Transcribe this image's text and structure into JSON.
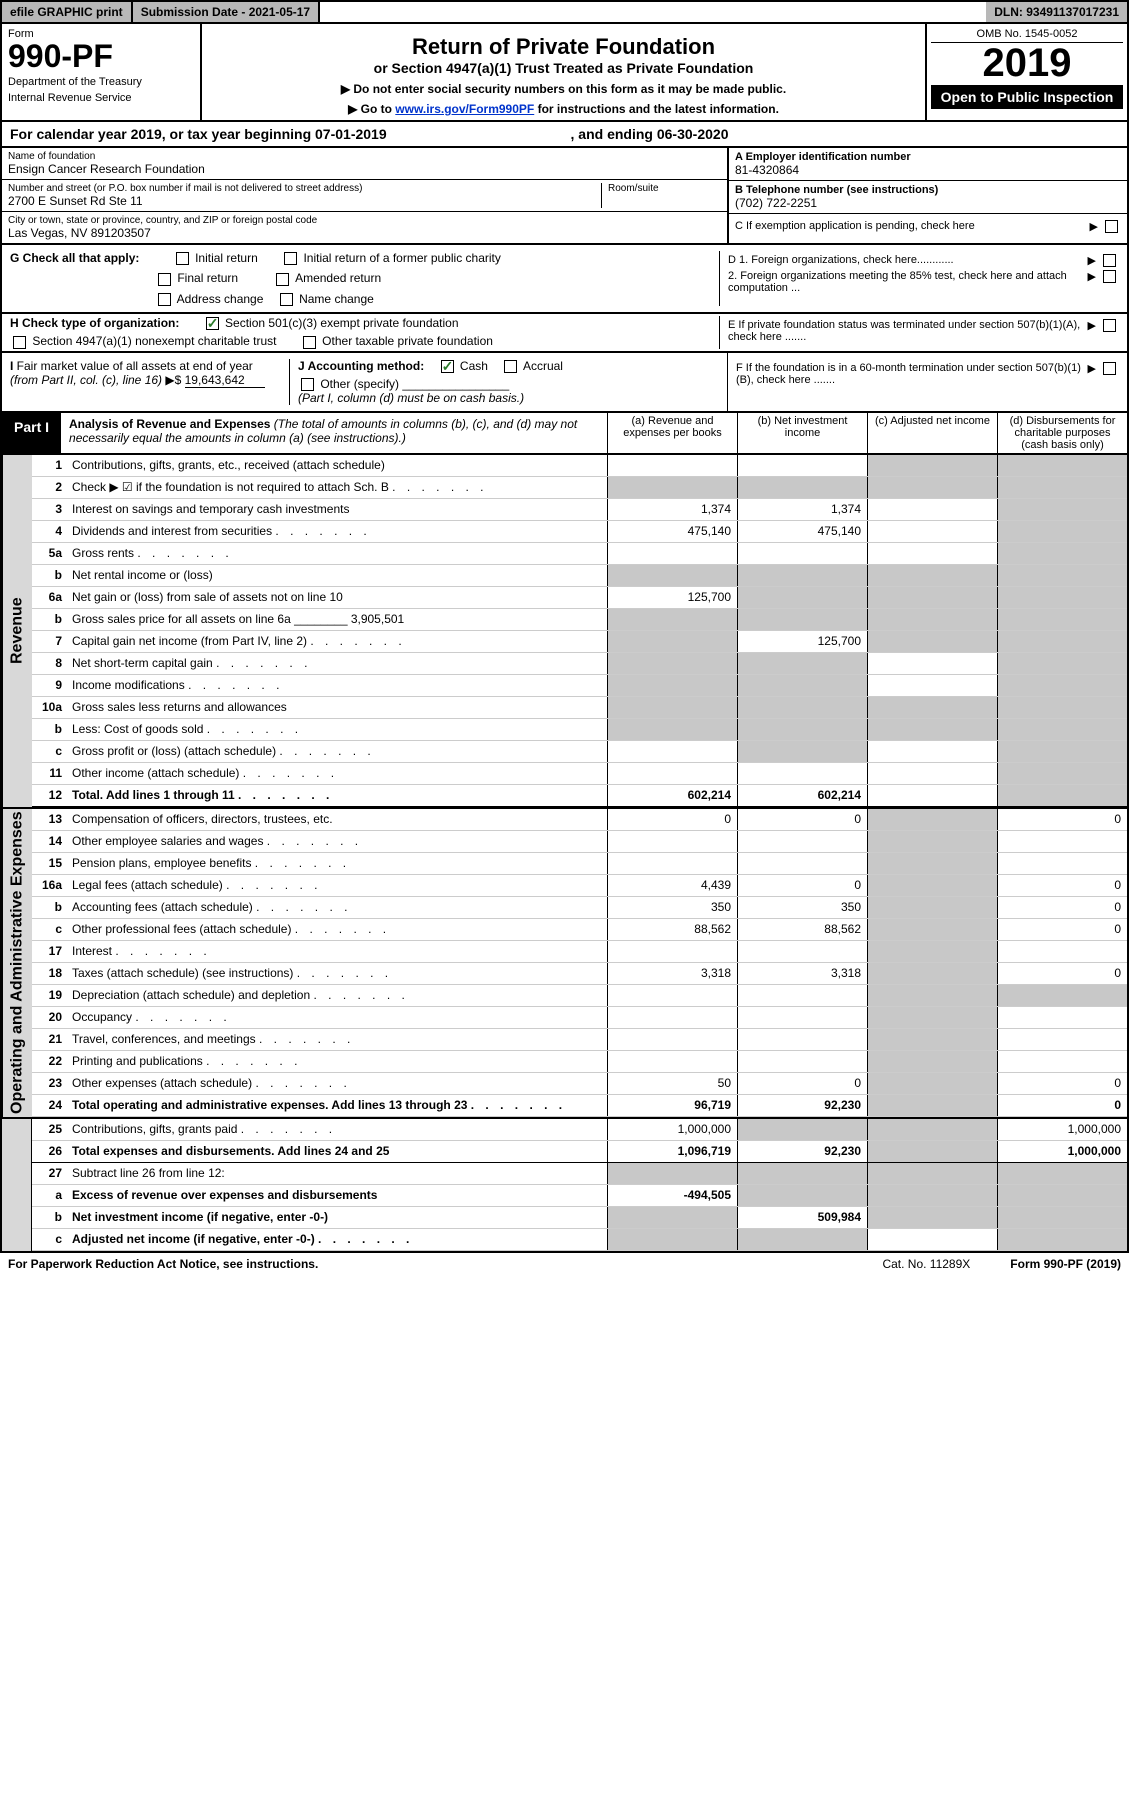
{
  "topbar": {
    "efile": "efile GRAPHIC print",
    "subdate": "Submission Date - 2021-05-17",
    "dln": "DLN: 93491137017231"
  },
  "header": {
    "form_label": "Form",
    "form_no": "990-PF",
    "dept1": "Department of the Treasury",
    "dept2": "Internal Revenue Service",
    "title1": "Return of Private Foundation",
    "title2": "or Section 4947(a)(1) Trust Treated as Private Foundation",
    "instr1": "▶ Do not enter social security numbers on this form as it may be made public.",
    "instr2": "▶ Go to www.irs.gov/Form990PF for instructions and the latest information.",
    "omb": "OMB No. 1545-0052",
    "year": "2019",
    "open": "Open to Public Inspection"
  },
  "calyear": {
    "text": "For calendar year 2019, or tax year beginning 07-01-2019",
    "ending": ", and ending 06-30-2020"
  },
  "info": {
    "name_label": "Name of foundation",
    "name": "Ensign Cancer Research Foundation",
    "addr_label": "Number and street (or P.O. box number if mail is not delivered to street address)",
    "addr": "2700 E Sunset Rd Ste 11",
    "room_label": "Room/suite",
    "city_label": "City or town, state or province, country, and ZIP or foreign postal code",
    "city": "Las Vegas, NV  891203507",
    "ein_label": "A Employer identification number",
    "ein": "81-4320864",
    "tel_label": "B Telephone number (see instructions)",
    "tel": "(702) 722-2251",
    "c_label": "C If exemption application is pending, check here"
  },
  "g": {
    "label": "G Check all that apply:",
    "opts": [
      "Initial return",
      "Initial return of a former public charity",
      "Final return",
      "Amended return",
      "Address change",
      "Name change"
    ]
  },
  "d": {
    "d1": "D 1. Foreign organizations, check here............",
    "d2": "2. Foreign organizations meeting the 85% test, check here and attach computation ...",
    "e": "E  If private foundation status was terminated under section 507(b)(1)(A), check here .......",
    "f": "F  If the foundation is in a 60-month termination under section 507(b)(1)(B), check here ......."
  },
  "h": {
    "label": "H Check type of organization:",
    "opt1": "Section 501(c)(3) exempt private foundation",
    "opt2": "Section 4947(a)(1) nonexempt charitable trust",
    "opt3": "Other taxable private foundation"
  },
  "i": {
    "label": "I Fair market value of all assets at end of year (from Part II, col. (c), line 16)",
    "val": "19,643,642"
  },
  "j": {
    "label": "J Accounting method:",
    "cash": "Cash",
    "accrual": "Accrual",
    "other": "Other (specify)",
    "note": "(Part I, column (d) must be on cash basis.)"
  },
  "part1": {
    "label": "Part I",
    "title": "Analysis of Revenue and Expenses",
    "subtitle": "(The total of amounts in columns (b), (c), and (d) may not necessarily equal the amounts in column (a) (see instructions).)",
    "col_a": "(a) Revenue and expenses per books",
    "col_b": "(b) Net investment income",
    "col_c": "(c) Adjusted net income",
    "col_d": "(d) Disbursements for charitable purposes (cash basis only)"
  },
  "sections": {
    "revenue": "Revenue",
    "expenses": "Operating and Administrative Expenses"
  },
  "lines": [
    {
      "no": "1",
      "desc": "Contributions, gifts, grants, etc., received (attach schedule)",
      "a": "",
      "b": "",
      "c": "shade",
      "d": "shade"
    },
    {
      "no": "2",
      "desc": "Check ▶ ☑ if the foundation is not required to attach Sch. B",
      "dots": true,
      "a": "shade",
      "b": "shade",
      "c": "shade",
      "d": "shade"
    },
    {
      "no": "3",
      "desc": "Interest on savings and temporary cash investments",
      "a": "1,374",
      "b": "1,374",
      "c": "",
      "d": "shade"
    },
    {
      "no": "4",
      "desc": "Dividends and interest from securities",
      "dots": true,
      "a": "475,140",
      "b": "475,140",
      "c": "",
      "d": "shade"
    },
    {
      "no": "5a",
      "desc": "Gross rents",
      "dots": true,
      "a": "",
      "b": "",
      "c": "",
      "d": "shade"
    },
    {
      "no": "b",
      "desc": "Net rental income or (loss)",
      "a": "shade",
      "b": "shade",
      "c": "shade",
      "d": "shade"
    },
    {
      "no": "6a",
      "desc": "Net gain or (loss) from sale of assets not on line 10",
      "a": "125,700",
      "b": "shade",
      "c": "shade",
      "d": "shade"
    },
    {
      "no": "b",
      "desc": "Gross sales price for all assets on line 6a ________ 3,905,501",
      "a": "shade",
      "b": "shade",
      "c": "shade",
      "d": "shade"
    },
    {
      "no": "7",
      "desc": "Capital gain net income (from Part IV, line 2)",
      "dots": true,
      "a": "shade",
      "b": "125,700",
      "c": "shade",
      "d": "shade"
    },
    {
      "no": "8",
      "desc": "Net short-term capital gain",
      "dots": true,
      "a": "shade",
      "b": "shade",
      "c": "",
      "d": "shade"
    },
    {
      "no": "9",
      "desc": "Income modifications",
      "dots": true,
      "a": "shade",
      "b": "shade",
      "c": "",
      "d": "shade"
    },
    {
      "no": "10a",
      "desc": "Gross sales less returns and allowances",
      "a": "shade",
      "b": "shade",
      "c": "shade",
      "d": "shade"
    },
    {
      "no": "b",
      "desc": "Less: Cost of goods sold",
      "dots": true,
      "a": "shade",
      "b": "shade",
      "c": "shade",
      "d": "shade"
    },
    {
      "no": "c",
      "desc": "Gross profit or (loss) (attach schedule)",
      "dots": true,
      "a": "",
      "b": "shade",
      "c": "",
      "d": "shade"
    },
    {
      "no": "11",
      "desc": "Other income (attach schedule)",
      "dots": true,
      "a": "",
      "b": "",
      "c": "",
      "d": "shade"
    },
    {
      "no": "12",
      "desc": "Total. Add lines 1 through 11",
      "dots": true,
      "bold": true,
      "sep": true,
      "a": "602,214",
      "b": "602,214",
      "c": "",
      "d": "shade"
    },
    {
      "no": "13",
      "desc": "Compensation of officers, directors, trustees, etc.",
      "a": "0",
      "b": "0",
      "c": "shade",
      "d": "0"
    },
    {
      "no": "14",
      "desc": "Other employee salaries and wages",
      "dots": true,
      "a": "",
      "b": "",
      "c": "shade",
      "d": ""
    },
    {
      "no": "15",
      "desc": "Pension plans, employee benefits",
      "dots": true,
      "a": "",
      "b": "",
      "c": "shade",
      "d": ""
    },
    {
      "no": "16a",
      "desc": "Legal fees (attach schedule)",
      "dots": true,
      "a": "4,439",
      "b": "0",
      "c": "shade",
      "d": "0"
    },
    {
      "no": "b",
      "desc": "Accounting fees (attach schedule)",
      "dots": true,
      "a": "350",
      "b": "350",
      "c": "shade",
      "d": "0"
    },
    {
      "no": "c",
      "desc": "Other professional fees (attach schedule)",
      "dots": true,
      "a": "88,562",
      "b": "88,562",
      "c": "shade",
      "d": "0"
    },
    {
      "no": "17",
      "desc": "Interest",
      "dots": true,
      "a": "",
      "b": "",
      "c": "shade",
      "d": ""
    },
    {
      "no": "18",
      "desc": "Taxes (attach schedule) (see instructions)",
      "dots": true,
      "a": "3,318",
      "b": "3,318",
      "c": "shade",
      "d": "0"
    },
    {
      "no": "19",
      "desc": "Depreciation (attach schedule) and depletion",
      "dots": true,
      "a": "",
      "b": "",
      "c": "shade",
      "d": "shade"
    },
    {
      "no": "20",
      "desc": "Occupancy",
      "dots": true,
      "a": "",
      "b": "",
      "c": "shade",
      "d": ""
    },
    {
      "no": "21",
      "desc": "Travel, conferences, and meetings",
      "dots": true,
      "a": "",
      "b": "",
      "c": "shade",
      "d": ""
    },
    {
      "no": "22",
      "desc": "Printing and publications",
      "dots": true,
      "a": "",
      "b": "",
      "c": "shade",
      "d": ""
    },
    {
      "no": "23",
      "desc": "Other expenses (attach schedule)",
      "dots": true,
      "a": "50",
      "b": "0",
      "c": "shade",
      "d": "0"
    },
    {
      "no": "24",
      "desc": "Total operating and administrative expenses. Add lines 13 through 23",
      "dots": true,
      "bold": true,
      "a": "96,719",
      "b": "92,230",
      "c": "shade",
      "d": "0"
    },
    {
      "no": "25",
      "desc": "Contributions, gifts, grants paid",
      "dots": true,
      "a": "1,000,000",
      "b": "shade",
      "c": "shade",
      "d": "1,000,000"
    },
    {
      "no": "26",
      "desc": "Total expenses and disbursements. Add lines 24 and 25",
      "bold": true,
      "sep": true,
      "a": "1,096,719",
      "b": "92,230",
      "c": "shade",
      "d": "1,000,000"
    },
    {
      "no": "27",
      "desc": "Subtract line 26 from line 12:",
      "a": "shade",
      "b": "shade",
      "c": "shade",
      "d": "shade"
    },
    {
      "no": "a",
      "desc": "Excess of revenue over expenses and disbursements",
      "bold": true,
      "a": "-494,505",
      "b": "shade",
      "c": "shade",
      "d": "shade"
    },
    {
      "no": "b",
      "desc": "Net investment income (if negative, enter -0-)",
      "bold": true,
      "a": "shade",
      "b": "509,984",
      "c": "shade",
      "d": "shade"
    },
    {
      "no": "c",
      "desc": "Adjusted net income (if negative, enter -0-)",
      "dots": true,
      "bold": true,
      "a": "shade",
      "b": "shade",
      "c": "",
      "d": "shade"
    }
  ],
  "footer": {
    "pra": "For Paperwork Reduction Act Notice, see instructions.",
    "cat": "Cat. No. 11289X",
    "form": "Form 990-PF (2019)"
  }
}
